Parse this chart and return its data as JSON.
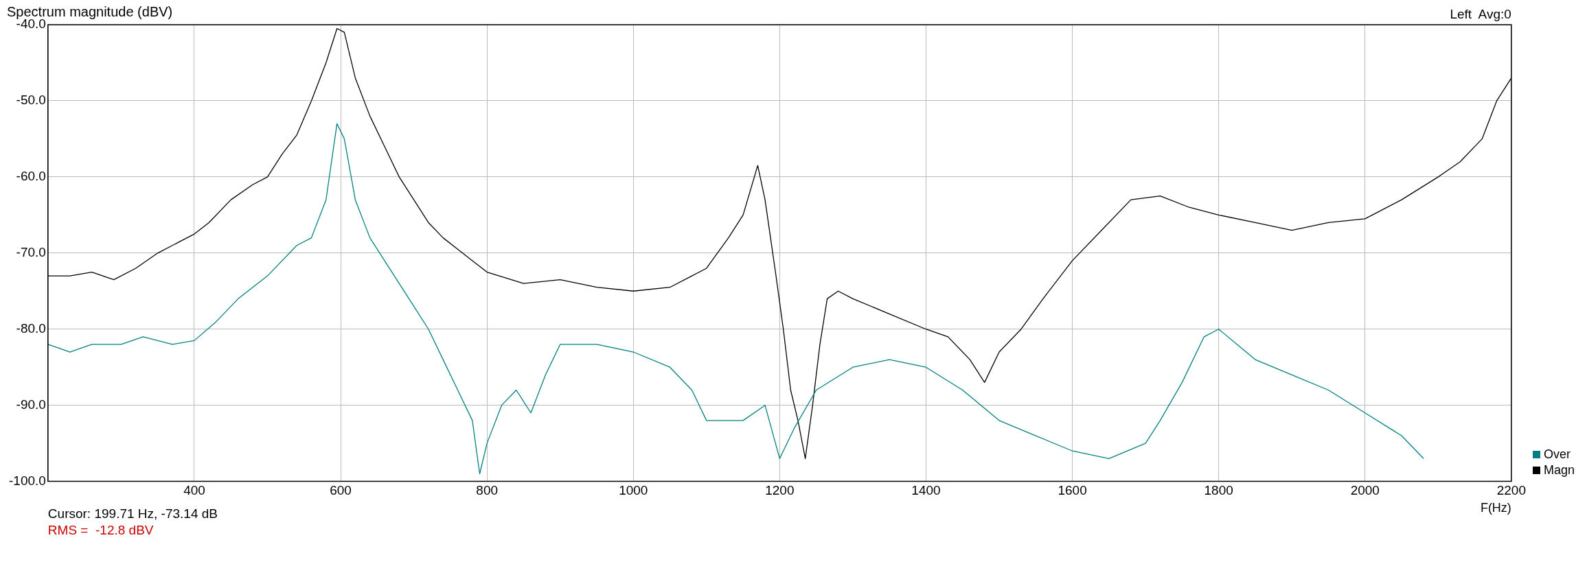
{
  "chart_data": {
    "type": "line",
    "title": "Spectrum magnitude (dBV)",
    "xlabel": "F(Hz)",
    "annotations": [
      "Left  Avg:0",
      "Cursor: 199.71 Hz, -73.14 dB",
      "RMS =  -12.8 dBV"
    ],
    "xlim": [
      200,
      2200
    ],
    "xticks": [
      {
        "value": 200,
        "label": null
      },
      400,
      600,
      800,
      1000,
      1200,
      1400,
      1600,
      1800,
      2000,
      2200
    ],
    "ylim": [
      -100,
      -40
    ],
    "yticks": [
      {
        "value": -100,
        "label": "-100.0"
      },
      {
        "value": -90,
        "label": "-90.0"
      },
      {
        "value": -80,
        "label": "-80.0"
      },
      {
        "value": -70,
        "label": "-70.0"
      },
      {
        "value": -60,
        "label": "-60.0"
      },
      {
        "value": -50,
        "label": "-50.0"
      },
      {
        "value": -40,
        "label": "-40.0"
      }
    ],
    "grid": true,
    "legend": "bottom right",
    "series": [
      {
        "name": "Over",
        "color": "#008080",
        "x": [
          200,
          230,
          260,
          300,
          330,
          370,
          400,
          430,
          460,
          500,
          540,
          560,
          580,
          595,
          605,
          620,
          640,
          660,
          680,
          700,
          720,
          740,
          760,
          780,
          790,
          800,
          820,
          840,
          860,
          880,
          900,
          950,
          1000,
          1050,
          1080,
          1100,
          1150,
          1180,
          1200,
          1220,
          1250,
          1300,
          1350,
          1400,
          1450,
          1500,
          1550,
          1600,
          1650,
          1700,
          1720,
          1750,
          1780,
          1800,
          1850,
          1900,
          1950,
          2000,
          2050,
          2080
        ],
        "values": [
          -82,
          -83,
          -82,
          -82,
          -81,
          -82,
          -81.5,
          -79,
          -76,
          -73,
          -69,
          -68,
          -63,
          -53,
          -55,
          -63,
          -68,
          -71,
          -74,
          -77,
          -80,
          -84,
          -88,
          -92,
          -99,
          -95,
          -90,
          -88,
          -91,
          -86,
          -82,
          -82,
          -83,
          -85,
          -88,
          -92,
          -92,
          -90,
          -97,
          -93,
          -88,
          -85,
          -84,
          -85,
          -88,
          -92,
          -94,
          -96,
          -97,
          -95,
          -92,
          -87,
          -81,
          -80,
          -84,
          -86,
          -88,
          -91,
          -94,
          -97
        ]
      },
      {
        "name": "Magn",
        "color": "#000000",
        "x": [
          200,
          230,
          260,
          290,
          320,
          350,
          380,
          400,
          420,
          450,
          480,
          500,
          520,
          540,
          560,
          580,
          595,
          605,
          620,
          640,
          660,
          680,
          700,
          720,
          740,
          760,
          780,
          800,
          850,
          900,
          950,
          1000,
          1050,
          1080,
          1100,
          1130,
          1150,
          1170,
          1180,
          1195,
          1205,
          1215,
          1225,
          1235,
          1245,
          1255,
          1265,
          1280,
          1300,
          1350,
          1400,
          1430,
          1460,
          1480,
          1500,
          1530,
          1560,
          1600,
          1640,
          1680,
          1720,
          1760,
          1800,
          1850,
          1900,
          1950,
          2000,
          2050,
          2100,
          2130,
          2160,
          2180,
          2200
        ],
        "values": [
          -73,
          -73,
          -72.5,
          -73.5,
          -72,
          -70,
          -68.5,
          -67.5,
          -66,
          -63,
          -61,
          -60,
          -57,
          -54.5,
          -50,
          -45,
          -40.5,
          -41,
          -47,
          -52,
          -56,
          -60,
          -63,
          -66,
          -68,
          -69.5,
          -71,
          -72.5,
          -74,
          -73.5,
          -74.5,
          -75,
          -74.5,
          -73,
          -72,
          -68,
          -65,
          -58.5,
          -63,
          -73,
          -80,
          -88,
          -92,
          -97,
          -90,
          -82,
          -76,
          -75,
          -76,
          -78,
          -80,
          -81,
          -84,
          -87,
          -83,
          -80,
          -76,
          -71,
          -67,
          -63,
          -62.5,
          -64,
          -65,
          -66,
          -67,
          -66,
          -65.5,
          -63,
          -60,
          -58,
          -55,
          -50,
          -47
        ]
      }
    ]
  }
}
